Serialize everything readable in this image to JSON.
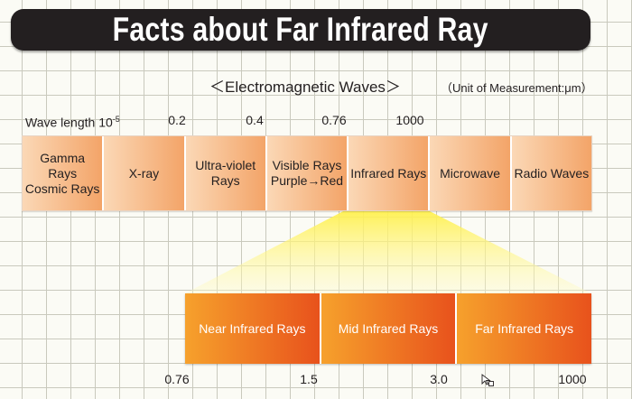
{
  "title": "Facts about Far Infrared Ray",
  "subtitle": "＜Electromagnetic Waves＞",
  "unit_note": "（Unit of Measurement:μm）",
  "wavelength_label": "Wave length 10",
  "wavelength_exponent": "-5",
  "top_ticks": [
    "0.2",
    "0.4",
    "0.76",
    "1000"
  ],
  "bands": [
    {
      "label": "Gamma Rays\nCosmic Rays"
    },
    {
      "label": "X-ray"
    },
    {
      "label": "Ultra-violet\nRays"
    },
    {
      "label": "Visible Rays\nPurple→Red"
    },
    {
      "label": "Infrared Rays"
    },
    {
      "label": "Microwave"
    },
    {
      "label": "Radio Waves"
    }
  ],
  "infrared_bands": [
    {
      "label": "Near Infrared Rays"
    },
    {
      "label": "Mid Infrared Rays"
    },
    {
      "label": "Far Infrared Rays"
    }
  ],
  "bottom_ticks": [
    "0.76",
    "1.5",
    "3.0",
    "1000"
  ],
  "colors": {
    "title_bg": "#231f20",
    "band_start": "#fbd8b6",
    "band_end": "#f3a468",
    "ir_start": "#f6a12c",
    "ir_end": "#e8521c",
    "beam": "#fff176"
  }
}
